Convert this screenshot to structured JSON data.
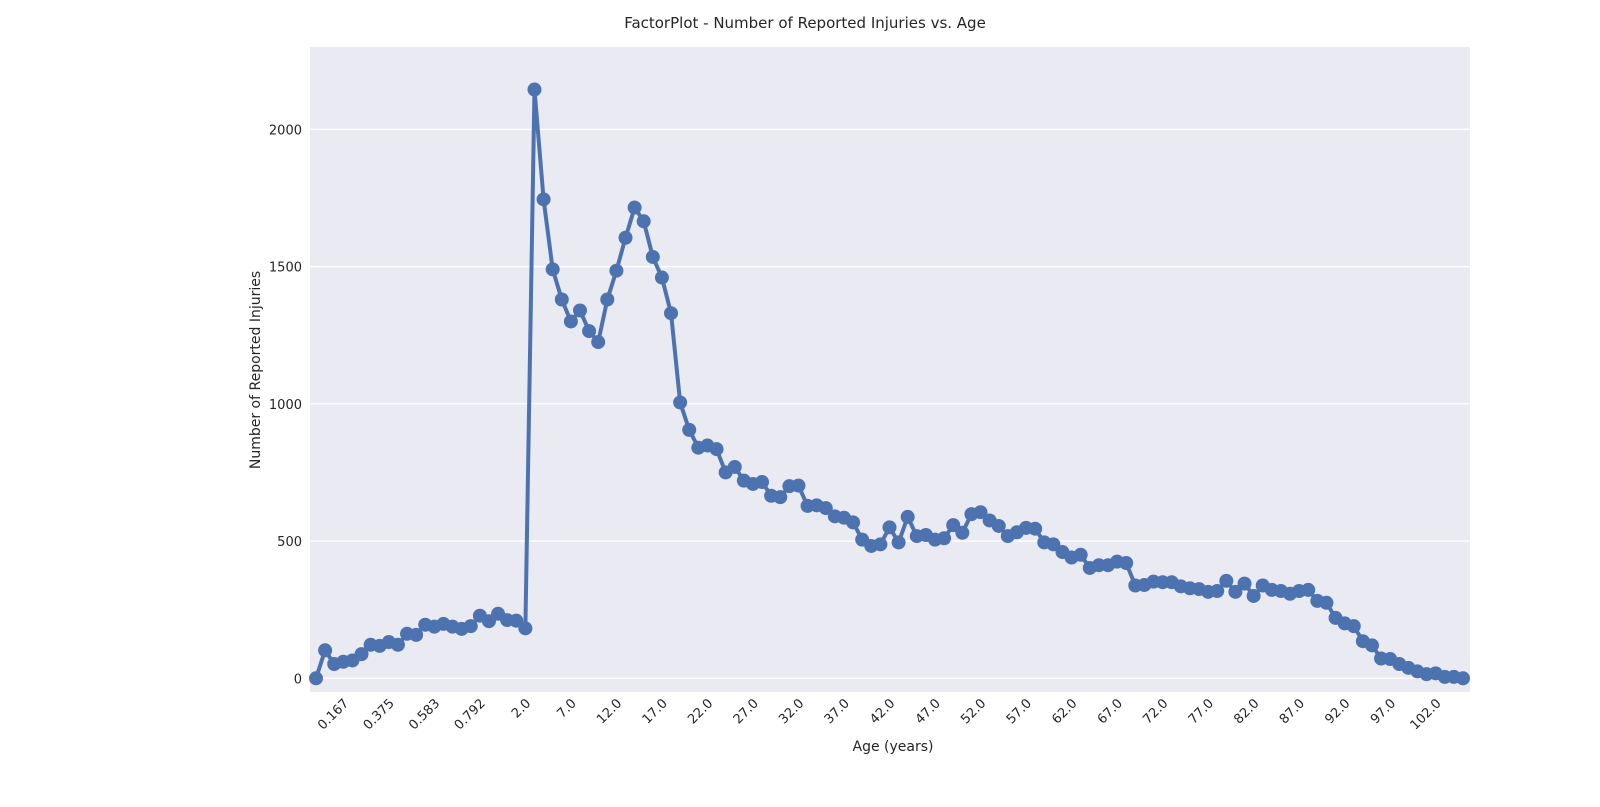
{
  "chart_data": {
    "type": "line",
    "title": "FactorPlot - Number of Reported Injuries vs. Age",
    "xlabel": "Age (years)",
    "ylabel": "Number of Reported Injuries",
    "ylim": [
      -50,
      2300
    ],
    "y_ticks": [
      0,
      500,
      1000,
      1500,
      2000
    ],
    "x_tick_labels": [
      "0.167",
      "0.375",
      "0.583",
      "0.792",
      "2.0",
      "7.0",
      "12.0",
      "17.0",
      "22.0",
      "27.0",
      "32.0",
      "37.0",
      "42.0",
      "47.0",
      "52.0",
      "57.0",
      "62.0",
      "67.0",
      "72.0",
      "77.0",
      "82.0",
      "87.0",
      "92.0",
      "97.0",
      "102.0"
    ],
    "x_tick_every": 5,
    "x_tick_offset": 3,
    "grid": "y",
    "legend": "none",
    "style": {
      "background": "#eaeaf2",
      "grid_color": "#ffffff",
      "line_color": "#4c72b0"
    },
    "series": [
      {
        "name": "",
        "values": [
          0,
          102,
          52,
          60,
          65,
          88,
          122,
          118,
          132,
          122,
          162,
          158,
          195,
          188,
          198,
          188,
          180,
          190,
          228,
          208,
          235,
          212,
          210,
          182,
          2145,
          1745,
          1490,
          1380,
          1300,
          1340,
          1265,
          1225,
          1380,
          1485,
          1605,
          1715,
          1665,
          1535,
          1460,
          1330,
          1005,
          905,
          840,
          848,
          835,
          750,
          770,
          720,
          708,
          715,
          665,
          660,
          700,
          702,
          628,
          630,
          620,
          590,
          585,
          568,
          505,
          482,
          488,
          550,
          495,
          588,
          518,
          522,
          505,
          510,
          558,
          530,
          598,
          605,
          575,
          555,
          518,
          532,
          548,
          545,
          495,
          488,
          460,
          440,
          450,
          402,
          412,
          412,
          425,
          420,
          338,
          340,
          352,
          350,
          350,
          335,
          328,
          325,
          315,
          318,
          355,
          315,
          345,
          300,
          338,
          322,
          318,
          308,
          318,
          322,
          282,
          275,
          220,
          200,
          190,
          135,
          120,
          72,
          70,
          52,
          38,
          25,
          15,
          18,
          5,
          5,
          0
        ]
      }
    ]
  }
}
